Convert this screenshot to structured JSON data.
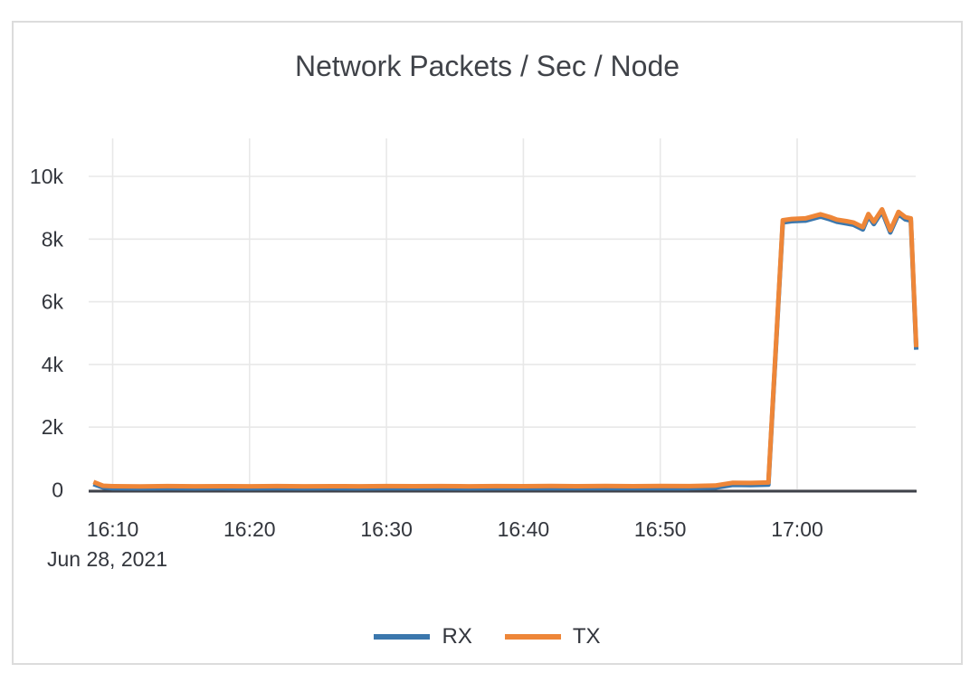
{
  "window": {
    "background": "#ffffff",
    "card_border_color": "#dcdcdc"
  },
  "chart_data": {
    "type": "line",
    "title": "Network Packets / Sec / Node",
    "x_axis": {
      "date_label": "Jun 28, 2021",
      "unit": "minutes after 16:00",
      "range_minutes": [
        8.55,
        68.75
      ],
      "ticks": [
        {
          "m": 10,
          "label": "16:10"
        },
        {
          "m": 20,
          "label": "16:20"
        },
        {
          "m": 30,
          "label": "16:30"
        },
        {
          "m": 40,
          "label": "16:40"
        },
        {
          "m": 50,
          "label": "16:50"
        },
        {
          "m": 60,
          "label": "17:00"
        }
      ]
    },
    "y_axis": {
      "unit": "packets/sec",
      "range": [
        0,
        11200
      ],
      "grid": true,
      "ticks": [
        {
          "v": 0,
          "label": "0"
        },
        {
          "v": 2000,
          "label": "2k"
        },
        {
          "v": 4000,
          "label": "4k"
        },
        {
          "v": 6000,
          "label": "6k"
        },
        {
          "v": 8000,
          "label": "8k"
        },
        {
          "v": 10000,
          "label": "10k"
        }
      ]
    },
    "legend": {
      "position": "bottom",
      "items": [
        "RX",
        "TX"
      ]
    },
    "grid_color": "#e8e8e8",
    "axis_line_color": "#3f4149",
    "series": [
      {
        "name": "RX",
        "color": "#3b77ad",
        "points": [
          [
            8.6,
            185
          ],
          [
            9.3,
            75
          ],
          [
            10,
            50
          ],
          [
            12,
            46
          ],
          [
            14,
            52
          ],
          [
            16,
            47
          ],
          [
            18,
            50
          ],
          [
            20,
            47
          ],
          [
            22,
            52
          ],
          [
            24,
            47
          ],
          [
            26,
            50
          ],
          [
            28,
            47
          ],
          [
            30,
            52
          ],
          [
            32,
            48
          ],
          [
            34,
            52
          ],
          [
            36,
            47
          ],
          [
            38,
            52
          ],
          [
            40,
            48
          ],
          [
            42,
            53
          ],
          [
            44,
            48
          ],
          [
            46,
            53
          ],
          [
            48,
            49
          ],
          [
            50,
            53
          ],
          [
            52,
            51
          ],
          [
            54,
            68
          ],
          [
            55.3,
            158
          ],
          [
            56.6,
            152
          ],
          [
            57.9,
            168
          ],
          [
            58.95,
            8530
          ],
          [
            59.6,
            8570
          ],
          [
            60.6,
            8590
          ],
          [
            61.7,
            8720
          ],
          [
            62.4,
            8630
          ],
          [
            62.9,
            8550
          ],
          [
            63.6,
            8500
          ],
          [
            64.1,
            8460
          ],
          [
            64.8,
            8310
          ],
          [
            65.2,
            8730
          ],
          [
            65.6,
            8480
          ],
          [
            66.2,
            8880
          ],
          [
            66.8,
            8210
          ],
          [
            67.4,
            8800
          ],
          [
            67.9,
            8630
          ],
          [
            68.3,
            8590
          ],
          [
            68.7,
            4470
          ]
        ]
      },
      {
        "name": "TX",
        "color": "#ee8638",
        "points": [
          [
            8.6,
            250
          ],
          [
            9.3,
            130
          ],
          [
            10,
            115
          ],
          [
            12,
            110
          ],
          [
            14,
            118
          ],
          [
            16,
            112
          ],
          [
            18,
            116
          ],
          [
            20,
            112
          ],
          [
            22,
            118
          ],
          [
            24,
            112
          ],
          [
            26,
            116
          ],
          [
            28,
            112
          ],
          [
            30,
            118
          ],
          [
            32,
            114
          ],
          [
            34,
            118
          ],
          [
            36,
            112
          ],
          [
            38,
            118
          ],
          [
            40,
            114
          ],
          [
            42,
            120
          ],
          [
            44,
            114
          ],
          [
            46,
            120
          ],
          [
            48,
            115
          ],
          [
            50,
            120
          ],
          [
            52,
            118
          ],
          [
            54,
            135
          ],
          [
            55.3,
            225
          ],
          [
            56.6,
            220
          ],
          [
            57.9,
            235
          ],
          [
            58.95,
            8600
          ],
          [
            59.6,
            8640
          ],
          [
            60.6,
            8660
          ],
          [
            61.7,
            8790
          ],
          [
            62.4,
            8700
          ],
          [
            62.9,
            8620
          ],
          [
            63.6,
            8570
          ],
          [
            64.1,
            8530
          ],
          [
            64.8,
            8380
          ],
          [
            65.2,
            8800
          ],
          [
            65.6,
            8550
          ],
          [
            66.2,
            8950
          ],
          [
            66.8,
            8280
          ],
          [
            67.4,
            8870
          ],
          [
            67.9,
            8700
          ],
          [
            68.3,
            8660
          ],
          [
            68.7,
            4550
          ]
        ]
      }
    ]
  }
}
